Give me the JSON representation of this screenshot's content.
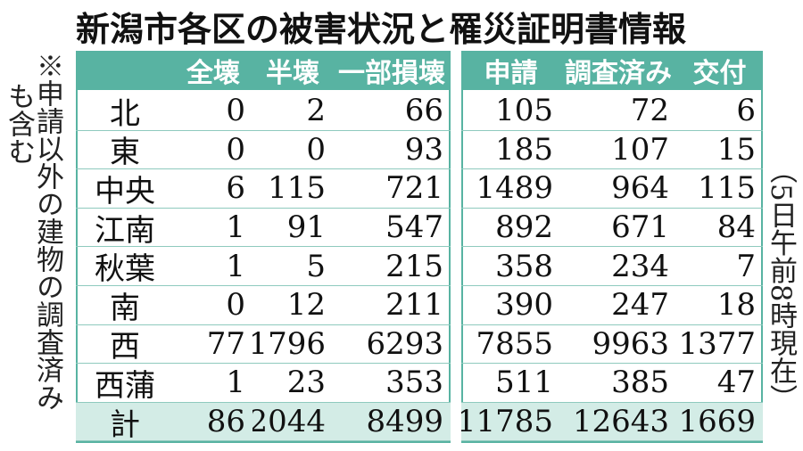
{
  "header": {
    "title": "新潟市各区の被害状況と罹災証明書情報"
  },
  "note": [
    "※申請以外の建物の調査済み",
    "も含む"
  ],
  "timestamp": "（5日午前8時現在）",
  "table": {
    "columns": [
      "全壊",
      "半壊",
      "一部損壊",
      "申請",
      "調査済み",
      "交付"
    ],
    "rows": [
      [
        "北",
        0,
        2,
        66,
        105,
        72,
        6
      ],
      [
        "東",
        0,
        0,
        93,
        185,
        107,
        15
      ],
      [
        "中央",
        6,
        115,
        721,
        1489,
        964,
        115
      ],
      [
        "江南",
        1,
        91,
        547,
        892,
        671,
        84
      ],
      [
        "秋葉",
        1,
        5,
        215,
        358,
        234,
        7
      ],
      [
        "南",
        0,
        12,
        211,
        390,
        247,
        18
      ],
      [
        "西",
        77,
        1796,
        6293,
        7855,
        9963,
        1377
      ],
      [
        "西蒲",
        1,
        23,
        353,
        511,
        385,
        47
      ]
    ],
    "total": [
      "計",
      86,
      2044,
      8499,
      11785,
      12643,
      1669
    ]
  }
}
